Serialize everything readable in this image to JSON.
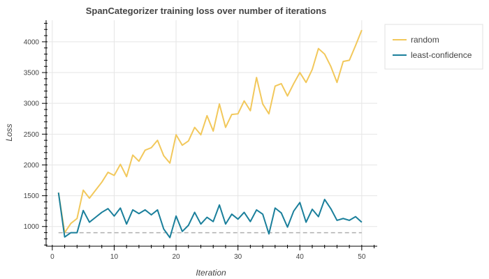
{
  "chart_data": {
    "type": "line",
    "title": "SpanCategorizer training loss over number of iterations",
    "xlabel": "Iteration",
    "ylabel": "Loss",
    "xlim": [
      -1,
      52.5
    ],
    "ylim": [
      680,
      4350
    ],
    "x_ticks": [
      0,
      10,
      20,
      30,
      40,
      50
    ],
    "y_ticks": [
      1000,
      1500,
      2000,
      2500,
      3000,
      3500,
      4000
    ],
    "grid": true,
    "legend_position": "top-right",
    "x": [
      1,
      2,
      3,
      4,
      5,
      6,
      7,
      8,
      9,
      10,
      11,
      12,
      13,
      14,
      15,
      16,
      17,
      18,
      19,
      20,
      21,
      22,
      23,
      24,
      25,
      26,
      27,
      28,
      29,
      30,
      31,
      32,
      33,
      34,
      35,
      36,
      37,
      38,
      39,
      40,
      41,
      42,
      43,
      44,
      45,
      46,
      47,
      48,
      49,
      50
    ],
    "series": [
      {
        "name": "random",
        "color": "#f2c85b",
        "values": [
          1550,
          900,
          1050,
          1130,
          1590,
          1460,
          1590,
          1720,
          1880,
          1830,
          2010,
          1810,
          2160,
          2060,
          2240,
          2280,
          2400,
          2150,
          2030,
          2490,
          2320,
          2390,
          2610,
          2490,
          2800,
          2550,
          2990,
          2610,
          2820,
          2830,
          3040,
          2880,
          3420,
          2990,
          2830,
          3280,
          3320,
          3120,
          3320,
          3500,
          3340,
          3550,
          3890,
          3800,
          3600,
          3340,
          3680,
          3700,
          3940,
          4190
        ]
      },
      {
        "name": "least-confidence",
        "color": "#1a7f9b",
        "values": [
          1550,
          830,
          900,
          900,
          1260,
          1070,
          1150,
          1230,
          1290,
          1170,
          1300,
          1040,
          1270,
          1210,
          1270,
          1190,
          1270,
          960,
          820,
          1170,
          920,
          1020,
          1230,
          1040,
          1150,
          1080,
          1350,
          1040,
          1200,
          1120,
          1230,
          1080,
          1270,
          1200,
          880,
          1300,
          1220,
          990,
          1250,
          1390,
          1070,
          1280,
          1160,
          1440,
          1290,
          1100,
          1130,
          1100,
          1160,
          1070
        ]
      }
    ],
    "reference_line": {
      "value": 900,
      "x_start": 1,
      "x_end": 50,
      "style": "dashed",
      "color": "#b0b0b0"
    }
  }
}
